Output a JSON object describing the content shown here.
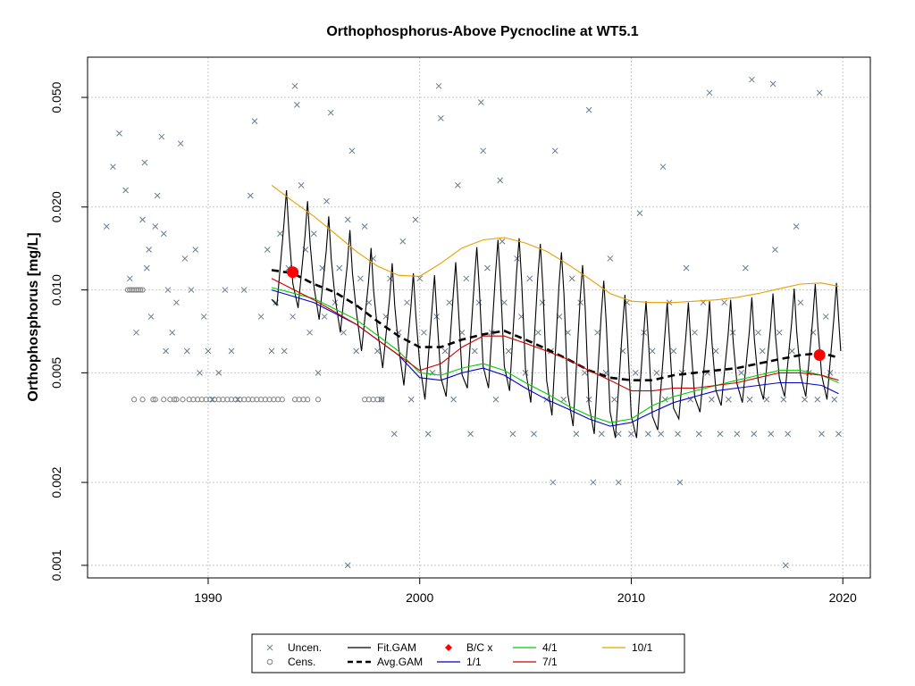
{
  "chart_data": {
    "type": "scatter",
    "title": "Orthophosphorus-Above Pycnocline at WT5.1",
    "xlabel": "",
    "ylabel": "Orthophosphorus [mg/L]",
    "xlim": [
      1984.3,
      2021.3
    ],
    "ylim": [
      0.0009,
      0.07
    ],
    "yscale": "log",
    "x_ticks": [
      1990,
      2000,
      2010,
      2020
    ],
    "y_ticks": [
      0.001,
      0.002,
      0.005,
      0.01,
      0.02,
      0.05
    ],
    "y_tick_labels": [
      "0.001",
      "0.002",
      "0.005",
      "0.010",
      "0.020",
      "0.050"
    ],
    "grid": true,
    "legend_position": "bottom",
    "legend": [
      {
        "label": "Uncen.",
        "symbol": "x",
        "color": "#708090"
      },
      {
        "label": "Cens.",
        "symbol": "circle",
        "color": "#808080"
      },
      {
        "label": "Fit.GAM",
        "symbol": "line",
        "color": "#000000"
      },
      {
        "label": "Avg.GAM",
        "symbol": "dashed",
        "color": "#000000"
      },
      {
        "label": "B/C x",
        "symbol": "diamond",
        "color": "#ff0000"
      },
      {
        "label": "1/1",
        "symbol": "line",
        "color": "#0000cc"
      },
      {
        "label": "4/1",
        "symbol": "line",
        "color": "#00cc00"
      },
      {
        "label": "7/1",
        "symbol": "line",
        "color": "#cc0000"
      },
      {
        "label": "10/1",
        "symbol": "line",
        "color": "#e6a000"
      }
    ],
    "series": [
      {
        "name": "Avg.GAM",
        "color": "#000000",
        "dash": true,
        "x": [
          1993.0,
          1994.0,
          1995.0,
          1996.0,
          1997.0,
          1998.0,
          1999.0,
          2000.0,
          2001.0,
          2002.0,
          2003.0,
          2004.0,
          2005.0,
          2006.0,
          2007.0,
          2008.0,
          2009.0,
          2010.0,
          2011.0,
          2012.0,
          2013.0,
          2014.0,
          2015.0,
          2016.0,
          2017.0,
          2018.0,
          2019.0,
          2019.7
        ],
        "y": [
          0.0118,
          0.0115,
          0.0105,
          0.0098,
          0.0088,
          0.0077,
          0.0068,
          0.0062,
          0.0062,
          0.0066,
          0.0069,
          0.0071,
          0.0066,
          0.0061,
          0.0056,
          0.0051,
          0.0048,
          0.0047,
          0.0047,
          0.0049,
          0.005,
          0.0051,
          0.0052,
          0.0054,
          0.0056,
          0.0058,
          0.0059,
          0.0057
        ]
      },
      {
        "name": "1/1",
        "color": "#0000cc",
        "dash": false,
        "x": [
          1993.0,
          1995.0,
          1997.0,
          1999.0,
          2000.0,
          2001.0,
          2002.0,
          2003.0,
          2004.0,
          2005.0,
          2006.0,
          2007.0,
          2008.0,
          2009.0,
          2010.0,
          2011.0,
          2012.0,
          2013.0,
          2014.0,
          2015.0,
          2016.0,
          2017.0,
          2018.0,
          2019.0,
          2019.8
        ],
        "y": [
          0.01,
          0.009,
          0.0075,
          0.0058,
          0.0048,
          0.0047,
          0.005,
          0.0052,
          0.0049,
          0.0044,
          0.004,
          0.0037,
          0.0034,
          0.0032,
          0.0033,
          0.0036,
          0.0039,
          0.0041,
          0.0043,
          0.0044,
          0.0045,
          0.0046,
          0.0046,
          0.0045,
          0.0042
        ]
      },
      {
        "name": "4/1",
        "color": "#00cc00",
        "dash": false,
        "x": [
          1993.0,
          1995.0,
          1997.0,
          1999.0,
          2000.0,
          2001.0,
          2002.0,
          2003.0,
          2004.0,
          2005.0,
          2006.0,
          2007.0,
          2008.0,
          2009.0,
          2010.0,
          2011.0,
          2012.0,
          2013.0,
          2014.0,
          2015.0,
          2016.0,
          2017.0,
          2018.0,
          2019.0,
          2019.8
        ],
        "y": [
          0.0102,
          0.0093,
          0.0078,
          0.006,
          0.005,
          0.0049,
          0.0052,
          0.0054,
          0.0051,
          0.0046,
          0.0042,
          0.0038,
          0.0035,
          0.0033,
          0.0034,
          0.0038,
          0.0041,
          0.0043,
          0.0045,
          0.0047,
          0.0049,
          0.0051,
          0.0051,
          0.0049,
          0.0046
        ]
      },
      {
        "name": "7/1",
        "color": "#cc0000",
        "dash": false,
        "x": [
          1993.0,
          1995.0,
          1997.0,
          1999.0,
          2000.0,
          2001.0,
          2002.0,
          2003.0,
          2004.0,
          2005.0,
          2006.0,
          2007.0,
          2008.0,
          2009.0,
          2010.0,
          2011.0,
          2012.0,
          2013.0,
          2014.0,
          2015.0,
          2016.0,
          2017.0,
          2018.0,
          2019.0,
          2019.8
        ],
        "y": [
          0.011,
          0.0092,
          0.0075,
          0.0058,
          0.0051,
          0.0054,
          0.0062,
          0.0068,
          0.0068,
          0.0064,
          0.006,
          0.0056,
          0.0051,
          0.0047,
          0.0043,
          0.0043,
          0.0044,
          0.0044,
          0.0045,
          0.0046,
          0.0048,
          0.005,
          0.005,
          0.0049,
          0.0047
        ]
      },
      {
        "name": "10/1",
        "color": "#e6a000",
        "dash": false,
        "x": [
          1993.0,
          1994.0,
          1995.0,
          1996.0,
          1997.0,
          1998.0,
          1999.0,
          2000.0,
          2001.0,
          2002.0,
          2003.0,
          2004.0,
          2005.0,
          2006.0,
          2007.0,
          2008.0,
          2009.0,
          2010.0,
          2011.0,
          2012.0,
          2013.0,
          2014.0,
          2015.0,
          2016.0,
          2017.0,
          2018.0,
          2019.0,
          2019.8
        ],
        "y": [
          0.024,
          0.021,
          0.0185,
          0.016,
          0.0138,
          0.0122,
          0.0113,
          0.0112,
          0.0125,
          0.0142,
          0.0152,
          0.0155,
          0.0148,
          0.0138,
          0.0124,
          0.011,
          0.0097,
          0.0091,
          0.009,
          0.009,
          0.0091,
          0.0092,
          0.0094,
          0.0097,
          0.0101,
          0.0105,
          0.0106,
          0.0103
        ]
      }
    ],
    "fit_gam": {
      "name": "Fit.GAM",
      "color": "#000000",
      "x_start": 1993.0,
      "x_end": 2019.9,
      "seasonal_peaks": [
        1993.7,
        1994.7,
        1995.7,
        1996.7,
        1997.7,
        1998.7,
        1999.7,
        2000.7,
        2001.7,
        2002.7,
        2003.7,
        2004.7,
        2005.7,
        2006.7,
        2007.7,
        2008.7,
        2009.7,
        2010.7,
        2011.7,
        2012.7,
        2013.7,
        2014.7,
        2015.7,
        2016.7,
        2017.7,
        2018.7,
        2019.7
      ],
      "peak_values": [
        0.023,
        0.021,
        0.0185,
        0.0165,
        0.0142,
        0.0125,
        0.0115,
        0.0113,
        0.0126,
        0.0143,
        0.0152,
        0.0154,
        0.0147,
        0.0137,
        0.0123,
        0.0108,
        0.0096,
        0.0091,
        0.009,
        0.009,
        0.0091,
        0.0092,
        0.0094,
        0.0097,
        0.0101,
        0.0105,
        0.0106
      ],
      "trough_values": [
        0.0088,
        0.0086,
        0.0078,
        0.007,
        0.006,
        0.0052,
        0.0045,
        0.004,
        0.0041,
        0.0044,
        0.0044,
        0.0043,
        0.0039,
        0.0035,
        0.0032,
        0.003,
        0.0029,
        0.0029,
        0.0031,
        0.0034,
        0.0036,
        0.0038,
        0.0039,
        0.004,
        0.0041,
        0.0041,
        0.004
      ]
    },
    "bc_points": [
      {
        "x": 1994.0,
        "y": 0.0116
      },
      {
        "x": 2018.9,
        "y": 0.0058
      }
    ],
    "censored_points": {
      "color": "#808080",
      "x": [
        1986.2,
        1986.3,
        1986.4,
        1986.5,
        1986.6,
        1986.7,
        1986.8,
        1986.9,
        1987.5,
        1987.9,
        1988.2,
        1988.5,
        1988.8,
        1989.1,
        1989.3,
        1989.5,
        1989.7,
        1989.9,
        1990.1,
        1990.3,
        1990.5,
        1990.7,
        1990.9,
        1991.1,
        1991.3,
        1991.5,
        1991.7,
        1991.9,
        1992.1,
        1992.3,
        1992.5,
        1992.7,
        1992.9,
        1993.1,
        1993.3,
        1993.5,
        1994.1,
        1994.3,
        1994.5,
        1994.7,
        1995.2,
        1997.4,
        1997.6,
        1997.8,
        1998.0,
        1998.2,
        1986.5,
        1986.9,
        1987.4,
        1988.4
      ],
      "y": [
        0.01,
        0.01,
        0.01,
        0.01,
        0.01,
        0.01,
        0.01,
        0.01,
        0.004,
        0.004,
        0.004,
        0.004,
        0.004,
        0.004,
        0.004,
        0.004,
        0.004,
        0.004,
        0.004,
        0.004,
        0.004,
        0.004,
        0.004,
        0.004,
        0.004,
        0.004,
        0.004,
        0.004,
        0.004,
        0.004,
        0.004,
        0.004,
        0.004,
        0.004,
        0.004,
        0.004,
        0.004,
        0.004,
        0.004,
        0.004,
        0.004,
        0.004,
        0.004,
        0.004,
        0.004,
        0.004,
        0.004,
        0.004,
        0.004,
        0.004
      ]
    },
    "uncensored_points": {
      "color": "#6b7b8c",
      "x": [
        1985.2,
        1985.5,
        1985.8,
        1986.1,
        1986.3,
        1986.6,
        1986.9,
        1987.0,
        1987.1,
        1987.2,
        1987.3,
        1987.5,
        1987.6,
        1987.8,
        1987.9,
        1988.0,
        1988.1,
        1988.3,
        1988.5,
        1988.7,
        1988.9,
        1989.0,
        1989.2,
        1989.4,
        1989.6,
        1989.8,
        1990.0,
        1990.2,
        1990.5,
        1990.8,
        1991.1,
        1991.4,
        1991.7,
        1992.0,
        1992.2,
        1992.5,
        1992.8,
        1993.0,
        1993.2,
        1993.4,
        1993.6,
        1993.8,
        1994.0,
        1994.2,
        1994.4,
        1994.6,
        1994.8,
        1995.0,
        1995.2,
        1995.4,
        1995.6,
        1995.8,
        1996.0,
        1996.2,
        1996.4,
        1996.6,
        1996.8,
        1997.0,
        1997.2,
        1997.4,
        1997.6,
        1997.8,
        1998.0,
        1998.2,
        1998.4,
        1998.6,
        1998.8,
        1999.0,
        1999.2,
        1999.4,
        1999.6,
        1999.8,
        2000.0,
        2000.2,
        2000.4,
        2000.6,
        2000.8,
        2001.0,
        2001.2,
        2001.4,
        2001.6,
        2001.8,
        2002.0,
        2002.2,
        2002.4,
        2002.6,
        2002.8,
        2003.0,
        2003.2,
        2003.4,
        2003.6,
        2003.8,
        2004.0,
        2004.2,
        2004.4,
        2004.6,
        2004.8,
        2005.0,
        2005.2,
        2005.4,
        2005.6,
        2005.8,
        2006.0,
        2006.2,
        2006.4,
        2006.6,
        2006.8,
        2007.0,
        2007.2,
        2007.4,
        2007.6,
        2007.8,
        2008.0,
        2008.2,
        2008.4,
        2008.6,
        2008.8,
        2009.0,
        2009.2,
        2009.4,
        2009.6,
        2009.8,
        2010.0,
        2010.2,
        2010.4,
        2010.6,
        2010.8,
        2011.0,
        2011.2,
        2011.4,
        2011.6,
        2011.8,
        2012.0,
        2012.2,
        2012.4,
        2012.6,
        2012.8,
        2013.0,
        2013.2,
        2013.4,
        2013.6,
        2013.8,
        2014.0,
        2014.2,
        2014.4,
        2014.6,
        2014.8,
        2015.0,
        2015.2,
        2015.4,
        2015.6,
        2015.8,
        2016.0,
        2016.2,
        2016.4,
        2016.6,
        2016.8,
        2017.0,
        2017.2,
        2017.4,
        2017.6,
        2017.8,
        2018.0,
        2018.2,
        2018.4,
        2018.6,
        2018.8,
        2019.0,
        2019.2,
        2019.4,
        2019.6,
        2019.8,
        2000.9,
        2002.9,
        2008.0,
        2011.5,
        2013.7,
        2015.7,
        2016.7,
        2018.9,
        1994.1,
        1996.6,
        1995.5,
        2003.9,
        2006.3,
        2009.4,
        2012.3,
        2017.3
      ],
      "y": [
        0.017,
        0.028,
        0.037,
        0.023,
        0.011,
        0.007,
        0.018,
        0.029,
        0.012,
        0.014,
        0.008,
        0.017,
        0.022,
        0.036,
        0.016,
        0.006,
        0.01,
        0.007,
        0.009,
        0.034,
        0.013,
        0.006,
        0.01,
        0.014,
        0.005,
        0.008,
        0.006,
        0.004,
        0.005,
        0.01,
        0.006,
        0.004,
        0.01,
        0.022,
        0.041,
        0.008,
        0.014,
        0.006,
        0.009,
        0.016,
        0.006,
        0.012,
        0.008,
        0.047,
        0.024,
        0.014,
        0.007,
        0.016,
        0.005,
        0.012,
        0.021,
        0.044,
        0.009,
        0.012,
        0.007,
        0.018,
        0.032,
        0.006,
        0.011,
        0.017,
        0.009,
        0.013,
        0.006,
        0.004,
        0.008,
        0.011,
        0.003,
        0.007,
        0.015,
        0.009,
        0.004,
        0.018,
        0.011,
        0.007,
        0.003,
        0.005,
        0.008,
        0.042,
        0.006,
        0.009,
        0.004,
        0.024,
        0.007,
        0.011,
        0.003,
        0.006,
        0.009,
        0.032,
        0.012,
        0.007,
        0.004,
        0.025,
        0.009,
        0.006,
        0.003,
        0.013,
        0.008,
        0.005,
        0.011,
        0.003,
        0.007,
        0.009,
        0.004,
        0.006,
        0.032,
        0.008,
        0.004,
        0.007,
        0.011,
        0.003,
        0.009,
        0.005,
        0.004,
        0.002,
        0.007,
        0.003,
        0.005,
        0.013,
        0.004,
        0.002,
        0.006,
        0.009,
        0.003,
        0.005,
        0.019,
        0.007,
        0.003,
        0.006,
        0.005,
        0.003,
        0.004,
        0.009,
        0.006,
        0.003,
        0.005,
        0.012,
        0.004,
        0.007,
        0.003,
        0.009,
        0.005,
        0.004,
        0.006,
        0.003,
        0.009,
        0.004,
        0.007,
        0.003,
        0.005,
        0.012,
        0.004,
        0.003,
        0.007,
        0.006,
        0.004,
        0.003,
        0.014,
        0.007,
        0.004,
        0.003,
        0.006,
        0.017,
        0.009,
        0.004,
        0.005,
        0.007,
        0.004,
        0.003,
        0.008,
        0.005,
        0.004,
        0.003,
        0.055,
        0.048,
        0.045,
        0.028,
        0.052,
        0.058,
        0.056,
        0.052,
        0.055,
        0.001,
        0.008,
        0.015,
        0.002,
        0.003,
        0.002,
        0.001
      ]
    }
  }
}
